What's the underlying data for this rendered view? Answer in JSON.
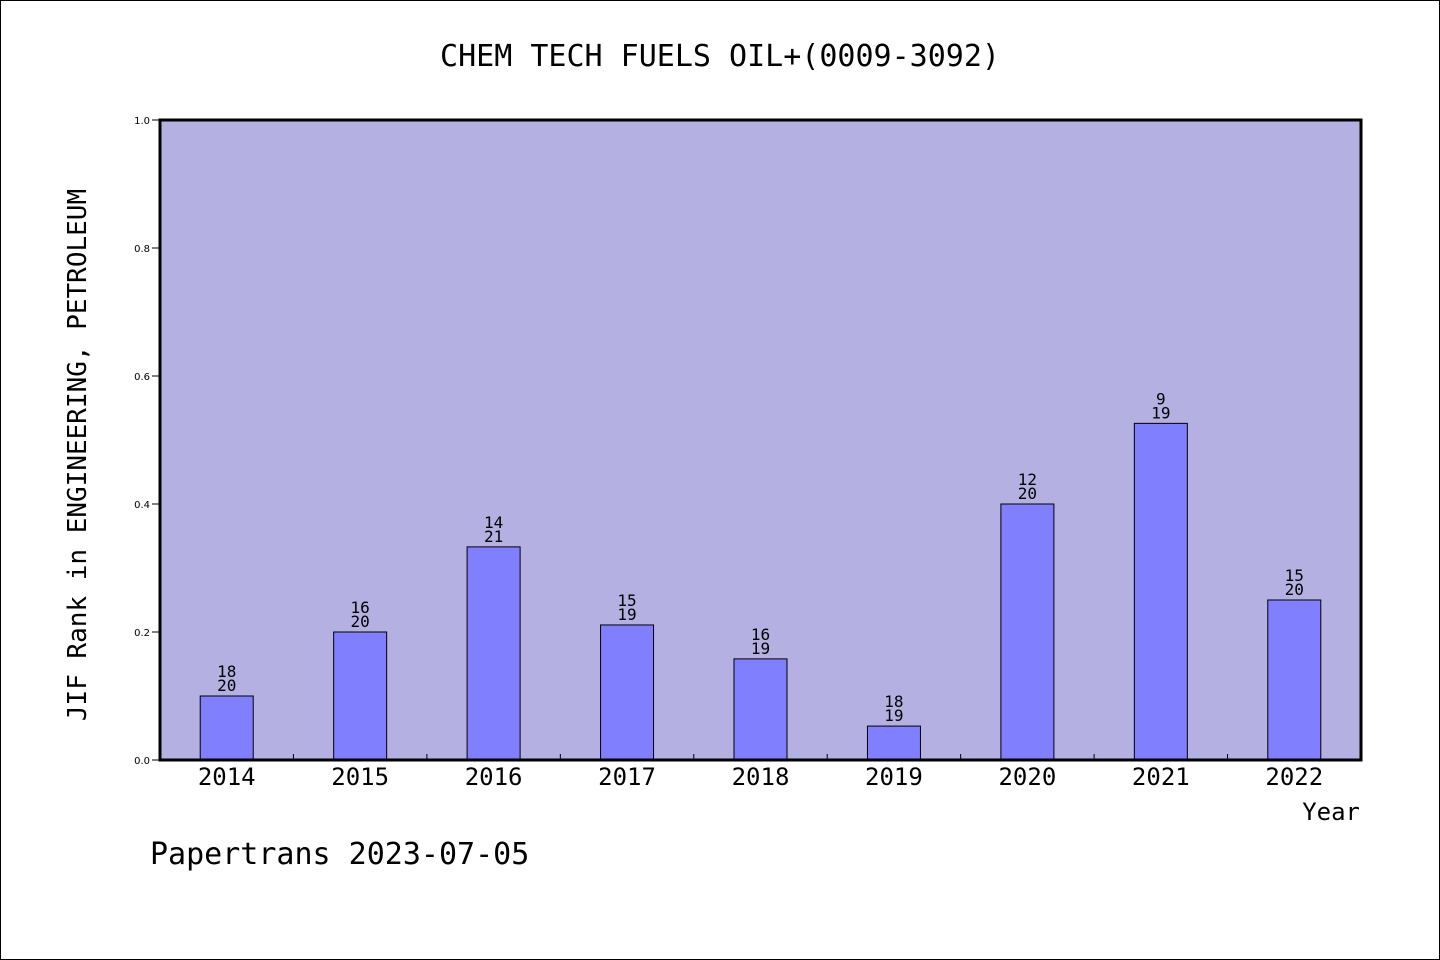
{
  "footer": "Papertrans 2023-07-05",
  "colors": {
    "plot_background": "#b5b0e2",
    "bar_fill": "#8080ff",
    "bar_stroke": "#000000",
    "axis": "#000000"
  },
  "chart_data": {
    "type": "bar",
    "title": "CHEM TECH FUELS OIL+(0009-3092)",
    "xlabel": "Year",
    "ylabel": "JIF Rank in ENGINEERING, PETROLEUM",
    "ylim": [
      0,
      1.0
    ],
    "yticks": [
      "0.0",
      "0.2",
      "0.4",
      "0.6",
      "0.8",
      "1.0"
    ],
    "grid": false,
    "categories": [
      "2014",
      "2015",
      "2016",
      "2017",
      "2018",
      "2019",
      "2020",
      "2021",
      "2022"
    ],
    "values": [
      0.1,
      0.2,
      0.333,
      0.211,
      0.158,
      0.053,
      0.4,
      0.526,
      0.25
    ],
    "rank": [
      "18",
      "16",
      "14",
      "15",
      "16",
      "18",
      "12",
      "9",
      "15"
    ],
    "total": [
      "20",
      "20",
      "21",
      "19",
      "19",
      "19",
      "20",
      "19",
      "20"
    ]
  }
}
